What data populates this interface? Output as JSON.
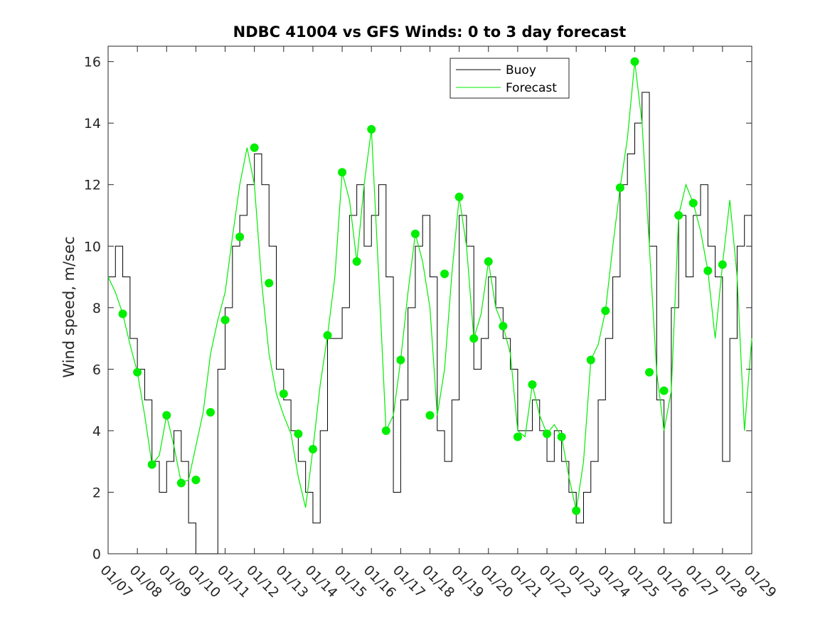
{
  "chart_data": {
    "type": "line",
    "title": "NDBC 41004 vs GFS Winds: 0 to 3 day forecast",
    "xlabel": "",
    "ylabel": "Wind speed, m/sec",
    "xlim": [
      7,
      29
    ],
    "ylim": [
      0,
      16.5
    ],
    "x_tick_labels": [
      "01/07",
      "01/08",
      "01/09",
      "01/10",
      "01/11",
      "01/12",
      "01/13",
      "01/14",
      "01/15",
      "01/16",
      "01/17",
      "01/18",
      "01/19",
      "01/20",
      "01/21",
      "01/22",
      "01/23",
      "01/24",
      "01/25",
      "01/26",
      "01/27",
      "01/28",
      "01/29"
    ],
    "y_ticks": [
      0,
      2,
      4,
      6,
      8,
      10,
      12,
      14,
      16
    ],
    "grid": false,
    "legend": {
      "position": "top-center",
      "entries": [
        "Buoy",
        "Forecast"
      ]
    },
    "colors": {
      "buoy": "#000000",
      "forecast": "#00ee00",
      "marker": "#00ee00",
      "axes": "#262626"
    },
    "series": [
      {
        "name": "Buoy",
        "x": [
          7.0,
          7.25,
          7.5,
          7.75,
          8.0,
          8.25,
          8.5,
          8.75,
          9.0,
          9.25,
          9.5,
          9.75,
          10.0,
          10.25,
          10.5,
          10.75,
          11.0,
          11.25,
          11.5,
          11.75,
          12.0,
          12.25,
          12.5,
          12.75,
          13.0,
          13.25,
          13.5,
          13.75,
          14.0,
          14.25,
          14.5,
          14.75,
          15.0,
          15.25,
          15.5,
          15.75,
          16.0,
          16.25,
          16.5,
          16.75,
          17.0,
          17.25,
          17.5,
          17.75,
          18.0,
          18.25,
          18.5,
          18.75,
          19.0,
          19.25,
          19.5,
          19.75,
          20.0,
          20.25,
          20.5,
          20.75,
          21.0,
          21.25,
          21.5,
          21.75,
          22.0,
          22.25,
          22.5,
          22.75,
          23.0,
          23.25,
          23.5,
          23.75,
          24.0,
          24.25,
          24.5,
          24.75,
          25.0,
          25.25,
          25.5,
          25.75,
          26.0,
          26.25,
          26.5,
          26.75,
          27.0,
          27.25,
          27.5,
          27.75,
          28.0,
          28.25,
          28.5,
          28.75,
          29.0
        ],
        "y": [
          9,
          10,
          9,
          7,
          6,
          5,
          3,
          2,
          3,
          4,
          3,
          1,
          0,
          0,
          0,
          6,
          8,
          10,
          11,
          12,
          13,
          12,
          10,
          6,
          5,
          4,
          3,
          2,
          1,
          4,
          7,
          7,
          8,
          11,
          12,
          10,
          11,
          12,
          9,
          2,
          5,
          8,
          10,
          11,
          9,
          4,
          3,
          5,
          11,
          10,
          6,
          7,
          9,
          8,
          7,
          6,
          4,
          4,
          5,
          4,
          3,
          4,
          3,
          2,
          1,
          2,
          3,
          5,
          7,
          9,
          12,
          13,
          14,
          15,
          10,
          5,
          1,
          8,
          11,
          9,
          11,
          12,
          10,
          9,
          3,
          7,
          10,
          11,
          6
        ]
      },
      {
        "name": "Forecast",
        "x": [
          7.0,
          7.25,
          7.5,
          7.75,
          8.0,
          8.25,
          8.5,
          8.75,
          9.0,
          9.25,
          9.5,
          9.75,
          10.0,
          10.25,
          10.5,
          10.75,
          11.0,
          11.25,
          11.5,
          11.75,
          12.0,
          12.25,
          12.5,
          12.75,
          13.0,
          13.25,
          13.5,
          13.75,
          14.0,
          14.25,
          14.5,
          14.75,
          15.0,
          15.25,
          15.5,
          15.75,
          16.0,
          16.25,
          16.5,
          16.75,
          17.0,
          17.25,
          17.5,
          17.75,
          18.0,
          18.25,
          18.5,
          18.75,
          19.0,
          19.25,
          19.5,
          19.75,
          20.0,
          20.25,
          20.5,
          20.75,
          21.0,
          21.25,
          21.5,
          21.75,
          22.0,
          22.25,
          22.5,
          22.75,
          23.0,
          23.25,
          23.5,
          23.75,
          24.0,
          24.25,
          24.5,
          24.75,
          25.0,
          25.25,
          25.5,
          25.75,
          26.0,
          26.25,
          26.5,
          26.75,
          27.0,
          27.25,
          27.5,
          27.75,
          28.0,
          28.25,
          28.5,
          28.75,
          29.0
        ],
        "y": [
          9,
          8.5,
          7.8,
          6.8,
          5.9,
          4.5,
          2.9,
          3.2,
          4.5,
          3.5,
          2.3,
          2.4,
          3.5,
          4.6,
          6.5,
          7.6,
          8.5,
          10.3,
          12,
          13.2,
          12,
          8.8,
          6.5,
          5.2,
          4.5,
          3.9,
          2.5,
          1.5,
          3.4,
          5.5,
          7.1,
          9,
          12.4,
          11.5,
          9.5,
          12,
          13.8,
          9,
          4,
          4.5,
          6.3,
          8.5,
          10.4,
          9.5,
          8,
          4.5,
          6,
          9.1,
          11.6,
          10,
          7,
          7.8,
          9.5,
          8,
          7.4,
          6.5,
          4,
          3.8,
          5.5,
          4.5,
          3.9,
          4.2,
          3.8,
          2.5,
          1.4,
          3,
          6.3,
          6.8,
          7.9,
          10,
          11.9,
          13.5,
          16,
          14,
          10,
          5.9,
          4,
          5.3,
          11,
          12,
          11.4,
          10.5,
          9.2,
          7,
          9.4,
          11.5,
          9,
          4,
          7
        ]
      }
    ],
    "markers": {
      "x": [
        7.5,
        8.0,
        8.5,
        9.0,
        9.5,
        10.0,
        10.5,
        11.0,
        11.5,
        12.0,
        12.5,
        13.0,
        13.5,
        14.0,
        14.5,
        15.0,
        15.5,
        16.0,
        16.5,
        17.0,
        17.5,
        18.0,
        18.5,
        19.0,
        19.5,
        20.0,
        20.5,
        21.0,
        21.5,
        22.0,
        22.5,
        23.0,
        23.5,
        24.0,
        24.5,
        25.0,
        25.5,
        26.0,
        26.5,
        27.0,
        27.5,
        28.0
      ],
      "y": [
        7.8,
        5.9,
        2.9,
        4.5,
        2.3,
        2.4,
        4.6,
        7.6,
        10.3,
        13.2,
        8.8,
        5.2,
        3.9,
        3.4,
        7.1,
        12.4,
        9.5,
        13.8,
        4.0,
        6.3,
        10.4,
        4.5,
        9.1,
        11.6,
        7.0,
        9.5,
        7.4,
        3.8,
        5.5,
        3.9,
        3.8,
        1.4,
        6.3,
        7.9,
        11.9,
        16.0,
        5.9,
        5.3,
        11.0,
        11.4,
        9.2,
        9.4
      ]
    }
  }
}
